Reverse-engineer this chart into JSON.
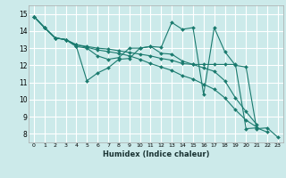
{
  "xlabel": "Humidex (Indice chaleur)",
  "bg_color": "#cceaea",
  "grid_color": "#ffffff",
  "line_color": "#1a7a6e",
  "marker": "D",
  "marker_size": 2.0,
  "linewidth": 0.8,
  "xlim": [
    -0.5,
    23.5
  ],
  "ylim": [
    7.5,
    15.5
  ],
  "xticks": [
    0,
    1,
    2,
    3,
    4,
    5,
    6,
    7,
    8,
    9,
    10,
    11,
    12,
    13,
    14,
    15,
    16,
    17,
    18,
    19,
    20,
    21,
    22,
    23
  ],
  "yticks": [
    8,
    9,
    10,
    11,
    12,
    13,
    14,
    15
  ],
  "series": [
    {
      "x": [
        0,
        1,
        2,
        3,
        4,
        5,
        6,
        7,
        8,
        9,
        10,
        11,
        12,
        13,
        14,
        15,
        16,
        17,
        18,
        19,
        20,
        21,
        22,
        23
      ],
      "y": [
        14.85,
        14.2,
        13.6,
        13.5,
        13.1,
        11.1,
        11.55,
        11.85,
        12.35,
        12.4,
        13.0,
        13.1,
        13.05,
        14.5,
        14.1,
        14.2,
        10.3,
        14.2,
        12.8,
        12.0,
        11.9,
        8.3,
        8.35,
        7.8
      ]
    },
    {
      "x": [
        0,
        1,
        2,
        3,
        4,
        5,
        6,
        7,
        8,
        9,
        10,
        11,
        12,
        13,
        14,
        15,
        16,
        17,
        18,
        19,
        20,
        21,
        22
      ],
      "y": [
        14.85,
        14.2,
        13.6,
        13.5,
        13.1,
        13.0,
        12.55,
        12.35,
        12.45,
        13.0,
        13.0,
        13.1,
        12.7,
        12.65,
        12.25,
        12.05,
        12.05,
        12.05,
        12.05,
        12.05,
        8.3,
        8.35,
        8.1
      ]
    },
    {
      "x": [
        0,
        1,
        2,
        3,
        4,
        5,
        6,
        7,
        8,
        9,
        10,
        11,
        12,
        13,
        14,
        15,
        16,
        17,
        18,
        19,
        20,
        21
      ],
      "y": [
        14.85,
        14.2,
        13.6,
        13.5,
        13.2,
        13.1,
        13.0,
        12.95,
        12.85,
        12.75,
        12.65,
        12.55,
        12.4,
        12.3,
        12.1,
        12.05,
        11.85,
        11.65,
        11.1,
        10.1,
        9.3,
        8.55
      ]
    },
    {
      "x": [
        0,
        1,
        2,
        3,
        4,
        5,
        6,
        7,
        8,
        9,
        10,
        11,
        12,
        13,
        14,
        15,
        16,
        17,
        18,
        19,
        20,
        21
      ],
      "y": [
        14.85,
        14.2,
        13.6,
        13.5,
        13.2,
        13.05,
        12.9,
        12.8,
        12.7,
        12.55,
        12.35,
        12.1,
        11.9,
        11.7,
        11.4,
        11.2,
        10.9,
        10.6,
        10.1,
        9.4,
        8.8,
        8.4
      ]
    }
  ]
}
